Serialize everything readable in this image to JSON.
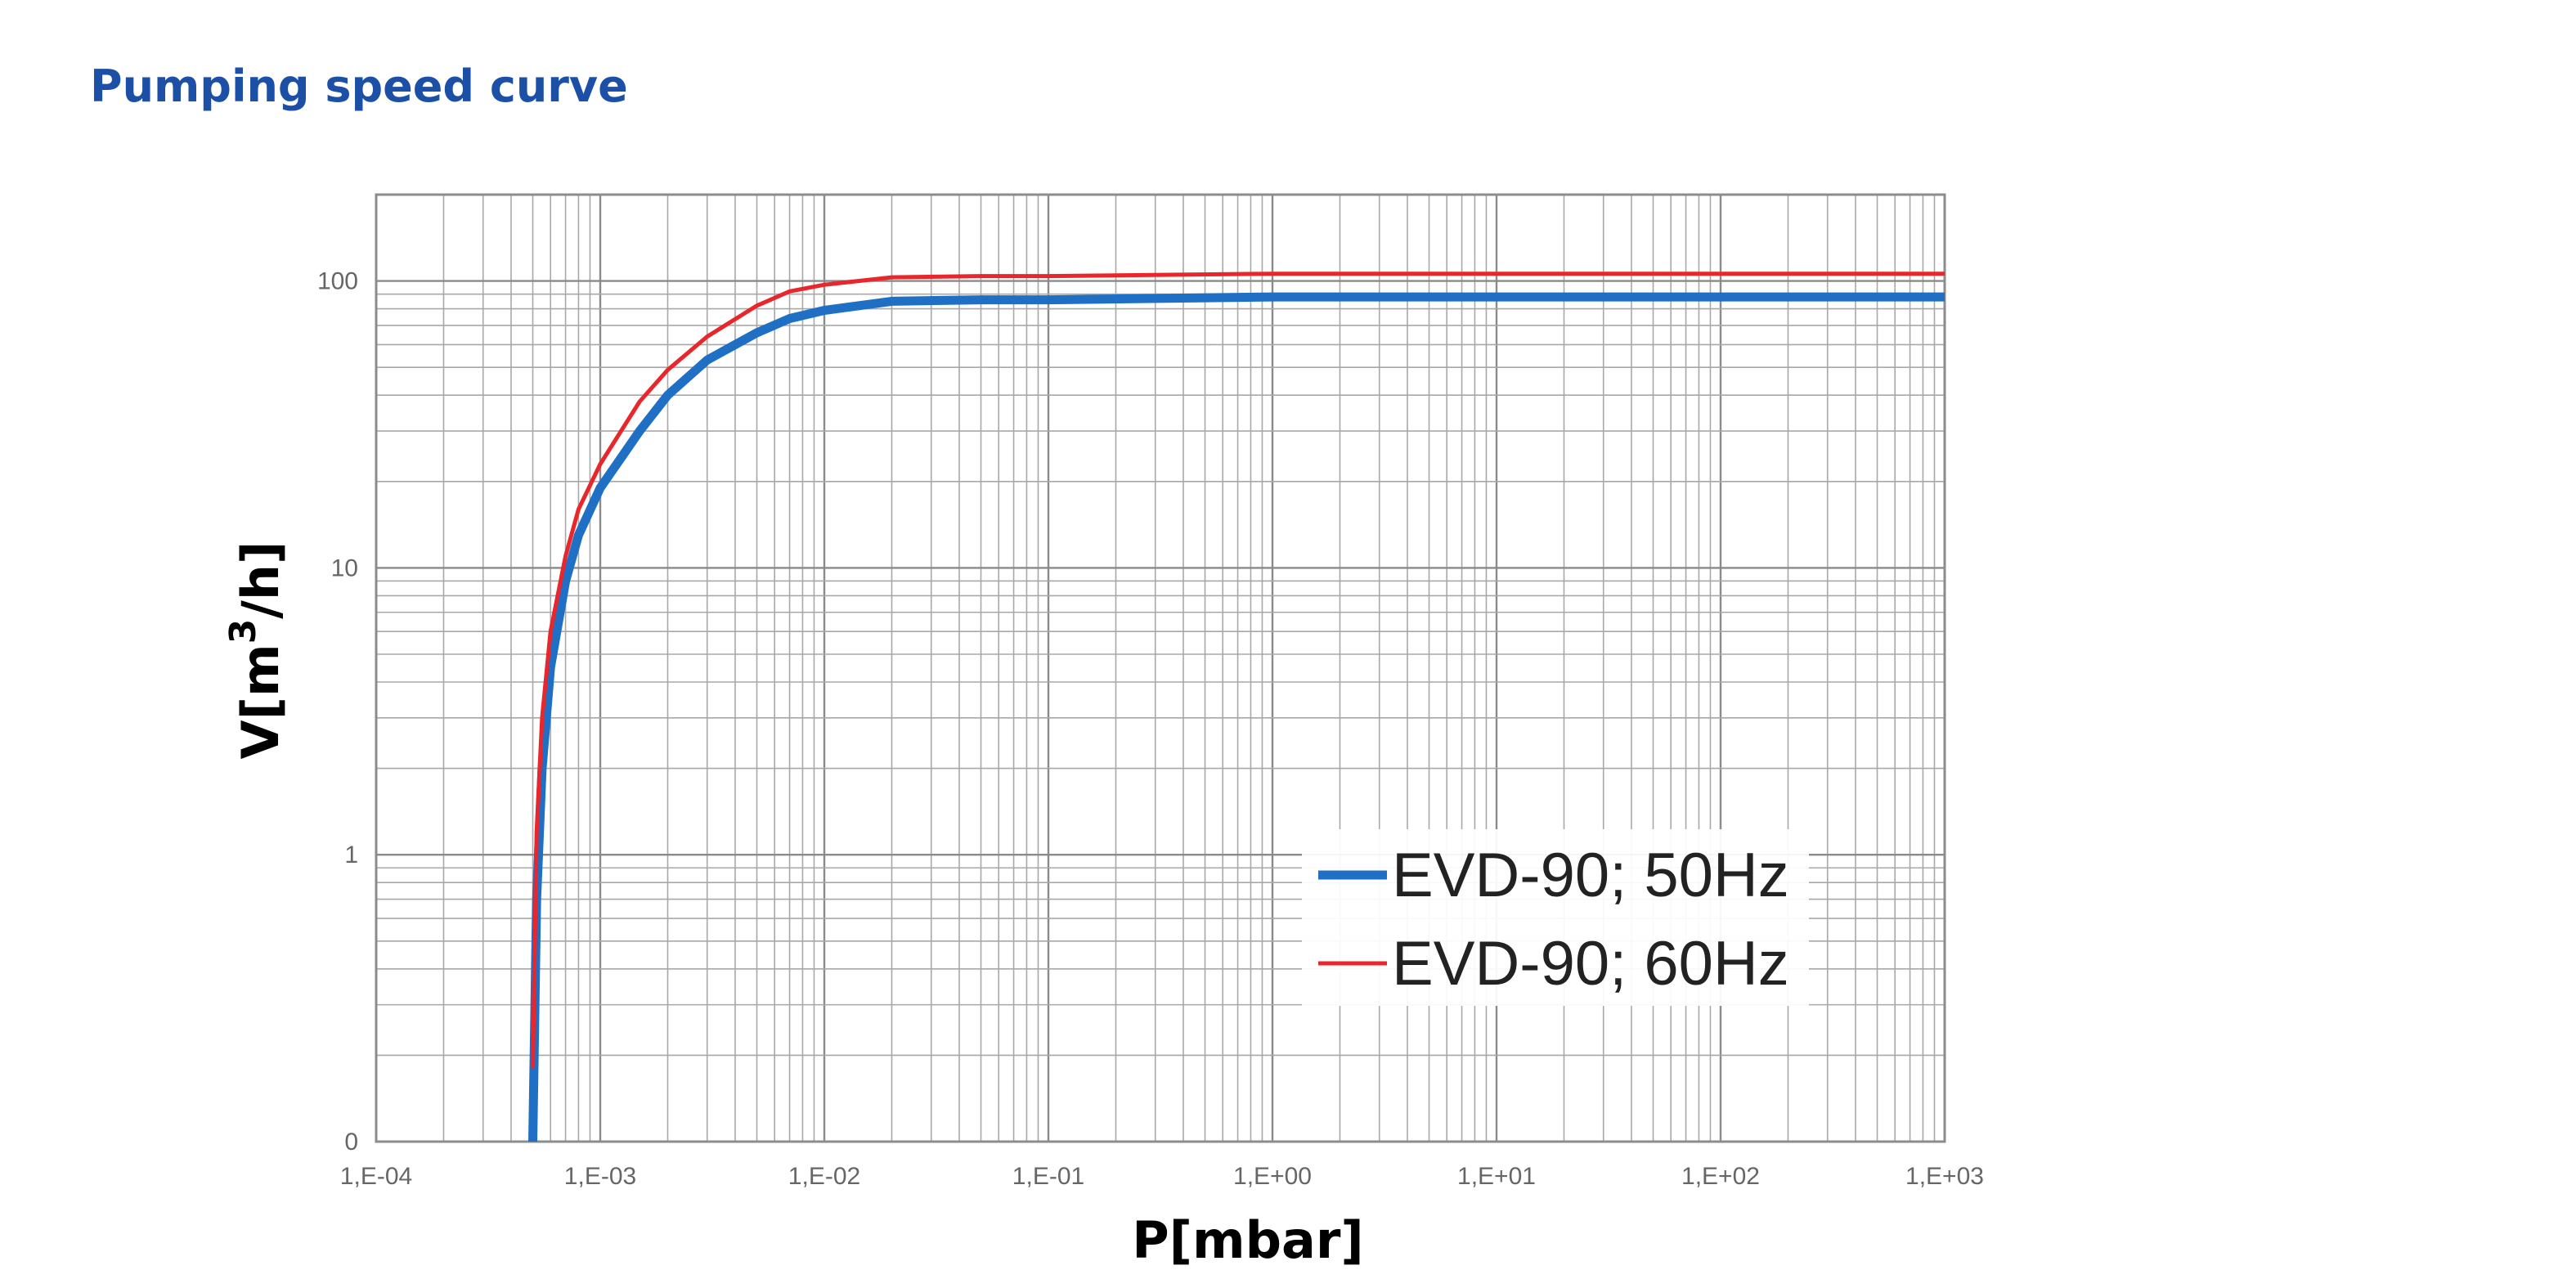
{
  "page": {
    "title": "Pumping speed curve"
  },
  "chart_data": {
    "type": "line",
    "title": "",
    "xlabel": "P[mbar]",
    "ylabel_main": "V[m",
    "ylabel_sup": "3",
    "ylabel_end": "/h]",
    "xscale": "log",
    "yscale": "log",
    "xlim": [
      0.0001,
      1000
    ],
    "ylim": [
      0.1,
      200
    ],
    "grid": true,
    "legend_position": "bottom-right",
    "x_ticks": [
      {
        "value": 0.0001,
        "label": "1,E-04"
      },
      {
        "value": 0.001,
        "label": "1,E-03"
      },
      {
        "value": 0.01,
        "label": "1,E-02"
      },
      {
        "value": 0.1,
        "label": "1,E-01"
      },
      {
        "value": 1,
        "label": "1,E+00"
      },
      {
        "value": 10,
        "label": "1,E+01"
      },
      {
        "value": 100,
        "label": "1,E+02"
      },
      {
        "value": 1000,
        "label": "1,E+03"
      }
    ],
    "y_ticks": [
      {
        "value": 0.1,
        "label": "0"
      },
      {
        "value": 1,
        "label": "1"
      },
      {
        "value": 10,
        "label": "10"
      },
      {
        "value": 100,
        "label": "100"
      }
    ],
    "series": [
      {
        "name": "EVD-90; 50Hz",
        "color": "#1f6fc5",
        "x": [
          0.0005,
          0.00052,
          0.00055,
          0.0006,
          0.0007,
          0.0008,
          0.001,
          0.0015,
          0.002,
          0.003,
          0.005,
          0.007,
          0.01,
          0.02,
          0.05,
          0.1,
          1,
          10,
          100,
          1000
        ],
        "y": [
          0.1,
          0.7,
          2,
          4.5,
          9,
          13,
          19,
          30,
          40,
          53,
          66,
          74,
          79,
          85,
          86,
          86,
          88,
          88,
          88,
          88
        ]
      },
      {
        "name": "EVD-90; 60Hz",
        "color": "#e8262b",
        "x": [
          0.0005,
          0.00052,
          0.00055,
          0.0006,
          0.0007,
          0.0008,
          0.001,
          0.0015,
          0.002,
          0.003,
          0.005,
          0.007,
          0.01,
          0.02,
          0.05,
          0.1,
          1,
          10,
          100,
          1000
        ],
        "y": [
          0.18,
          1.2,
          3,
          6,
          11,
          16,
          23,
          38,
          49,
          64,
          82,
          92,
          97,
          103,
          104,
          104,
          106,
          106,
          106,
          106
        ]
      }
    ]
  }
}
